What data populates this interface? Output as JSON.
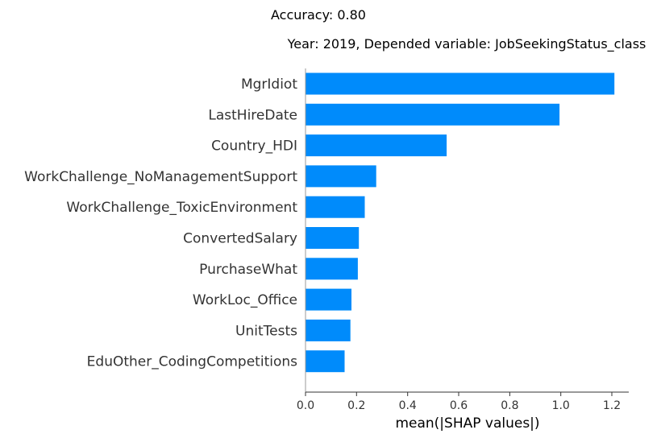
{
  "figure": {
    "suptitle": "Accuracy: 0.80"
  },
  "chart_data": {
    "type": "bar",
    "orientation": "horizontal",
    "title": "Year: 2019, Depended variable: JobSeekingStatus_class",
    "xlabel": "mean(|SHAP values|)",
    "ylabel": "",
    "categories": [
      "MgrIdiot",
      "LastHireDate",
      "Country_HDI",
      "WorkChallenge_NoManagementSupport",
      "WorkChallenge_ToxicEnvironment",
      "ConvertedSalary",
      "PurchaseWhat",
      "WorkLoc_Office",
      "UnitTests",
      "EduOther_CodingCompetitions"
    ],
    "values": [
      1.21,
      0.995,
      0.553,
      0.277,
      0.232,
      0.209,
      0.205,
      0.18,
      0.176,
      0.153
    ],
    "xlim": [
      0.0,
      1.27
    ],
    "xticks": [
      0.0,
      0.2,
      0.4,
      0.6,
      0.8,
      1.0,
      1.2
    ],
    "xtick_labels": [
      "0.0",
      "0.2",
      "0.4",
      "0.6",
      "0.8",
      "1.0",
      "1.2"
    ],
    "grid": false,
    "legend": "none",
    "bar_color": "#008bfb",
    "axis_color": "#333333"
  }
}
